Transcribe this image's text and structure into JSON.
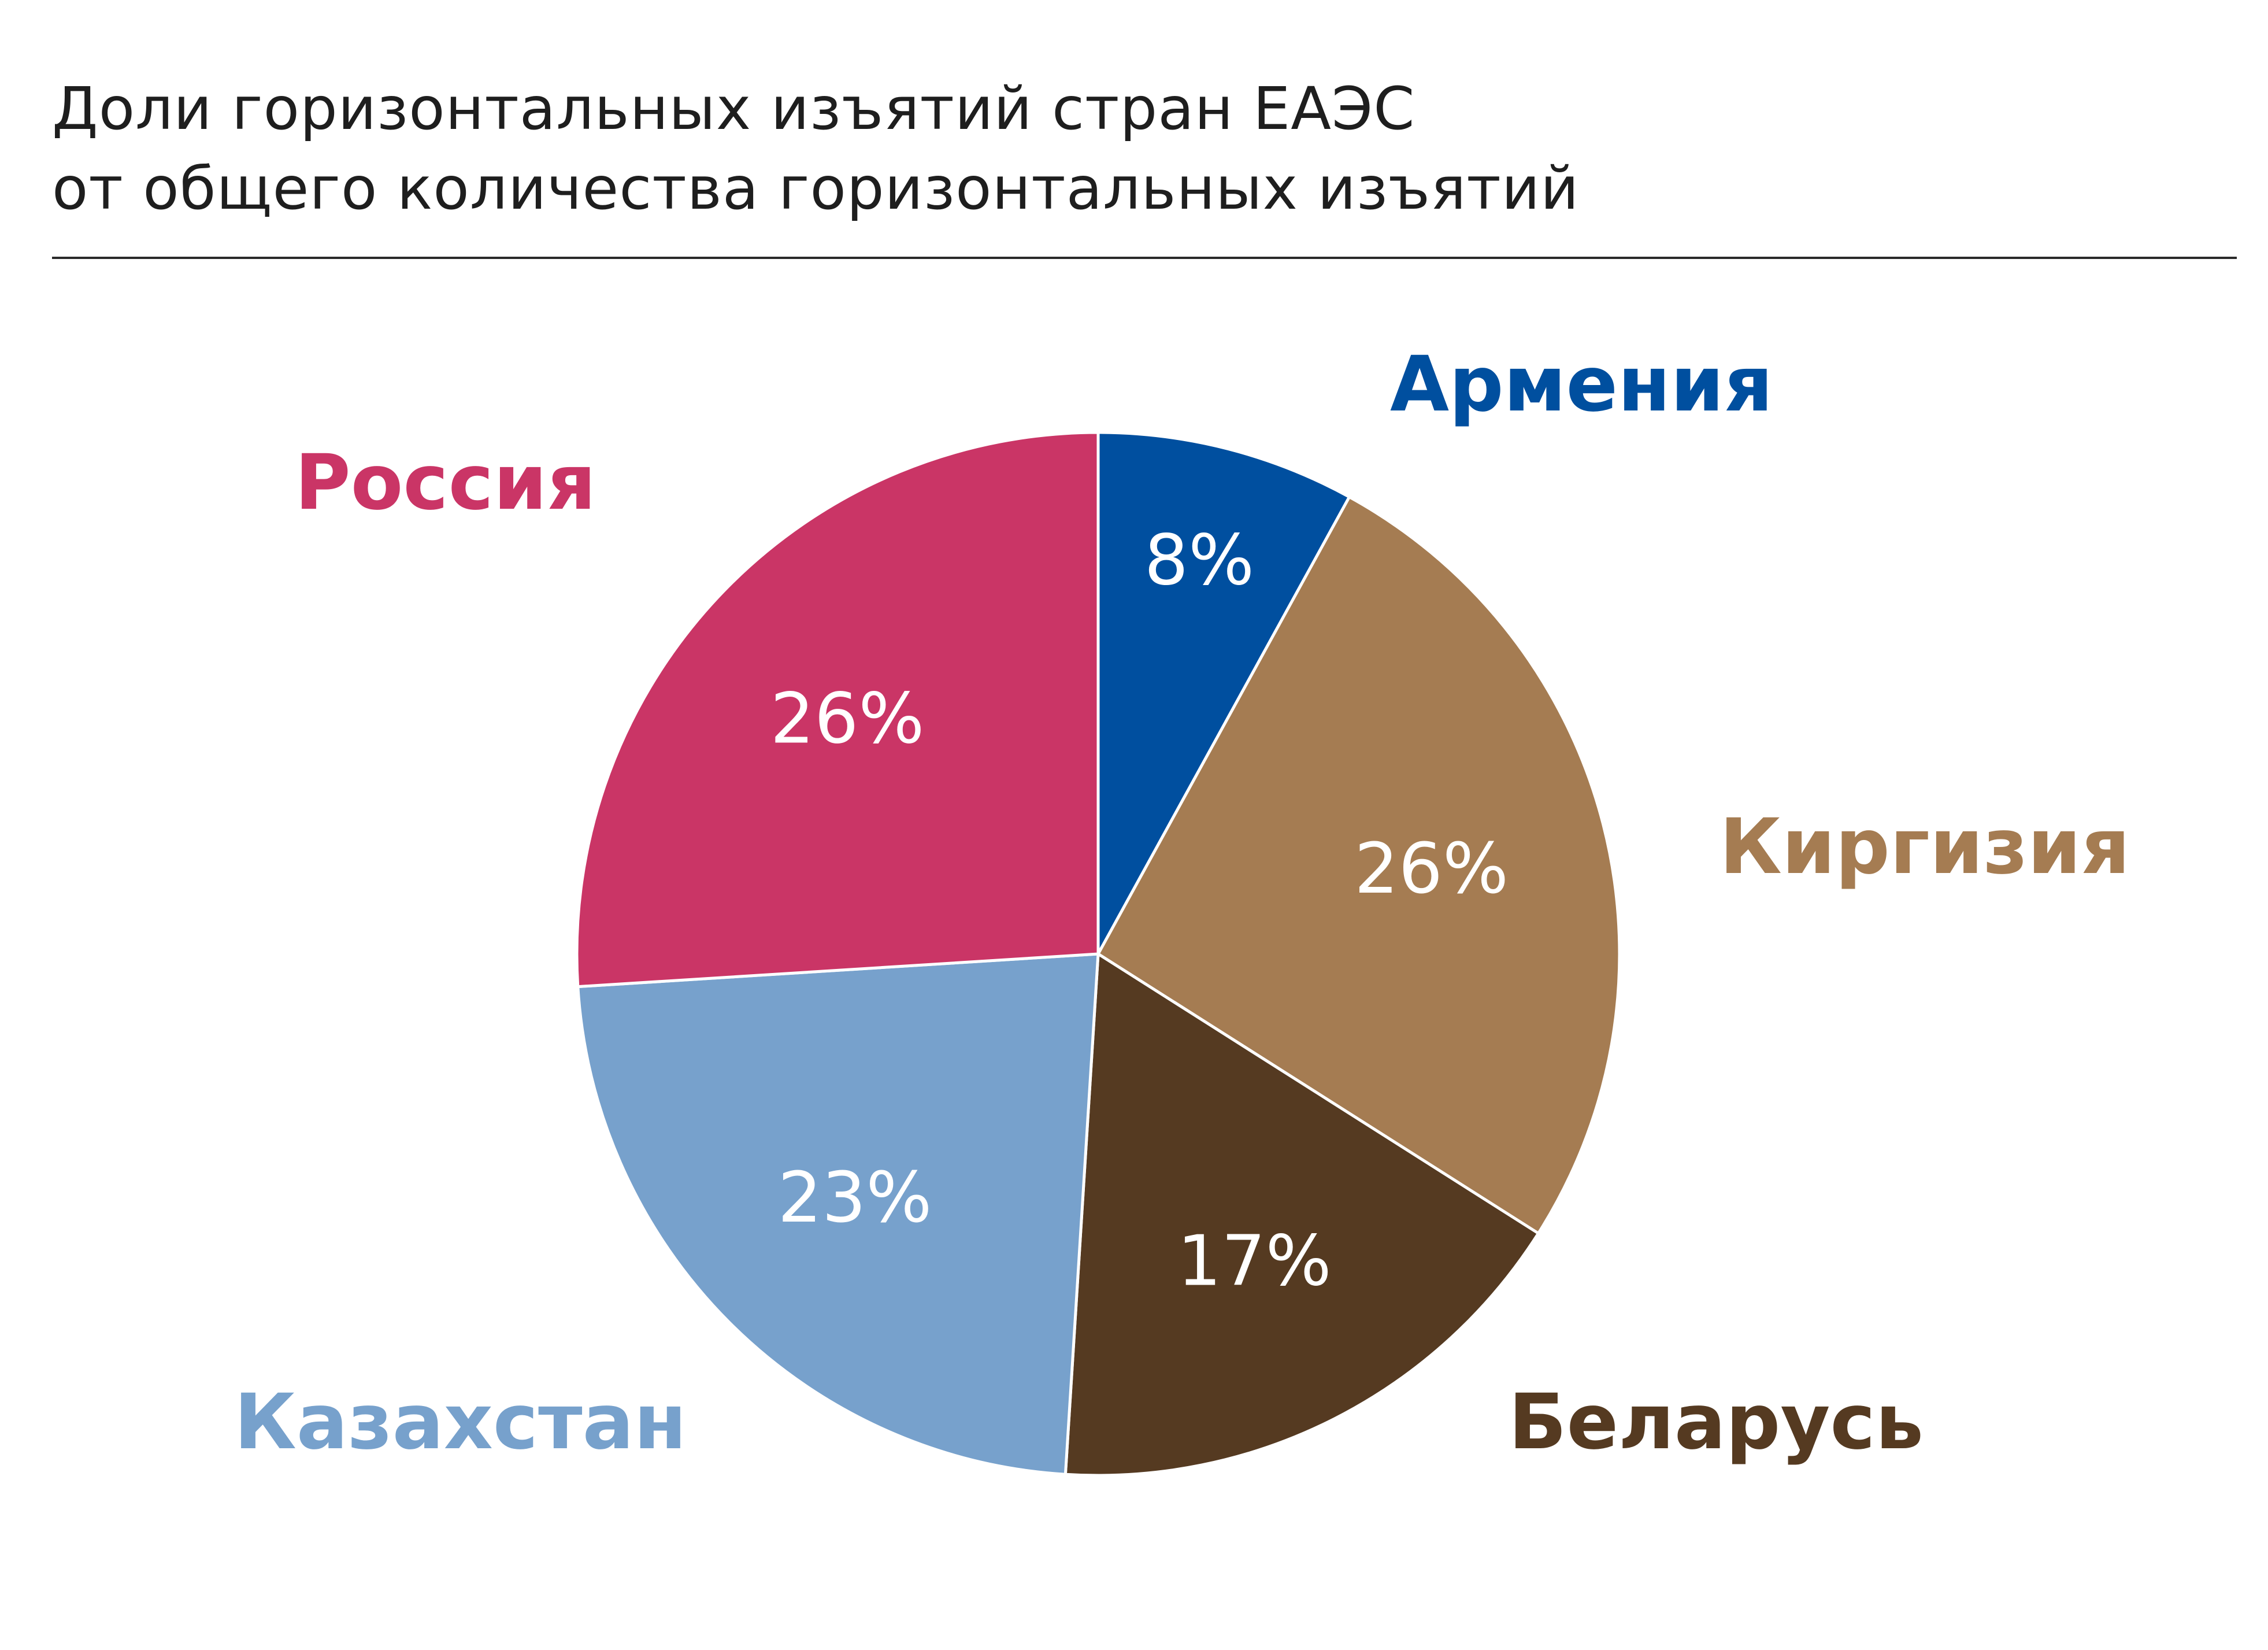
{
  "title_lines": [
    "Доли горизонтальных изъятий стран ЕАЭС",
    "от общего количества горизонтальных изъятий"
  ],
  "chart_data": {
    "type": "pie",
    "title": "Доли горизонтальных изъятий стран ЕАЭС от общего количества горизонтальных изъятий",
    "start_angle_deg": 0,
    "direction": "clockwise",
    "slices": [
      {
        "label": "Армения",
        "value": 8,
        "value_label": "8%",
        "color": "#004f9f"
      },
      {
        "label": "Киргизия",
        "value": 26,
        "value_label": "26%",
        "color": "#a57c52"
      },
      {
        "label": "Беларусь",
        "value": 17,
        "value_label": "17%",
        "color": "#553a21"
      },
      {
        "label": "Казахстан",
        "value": 23,
        "value_label": "23%",
        "color": "#77a1cc"
      },
      {
        "label": "Россия",
        "value": 26,
        "value_label": "26%",
        "color": "#ca3566"
      }
    ]
  }
}
